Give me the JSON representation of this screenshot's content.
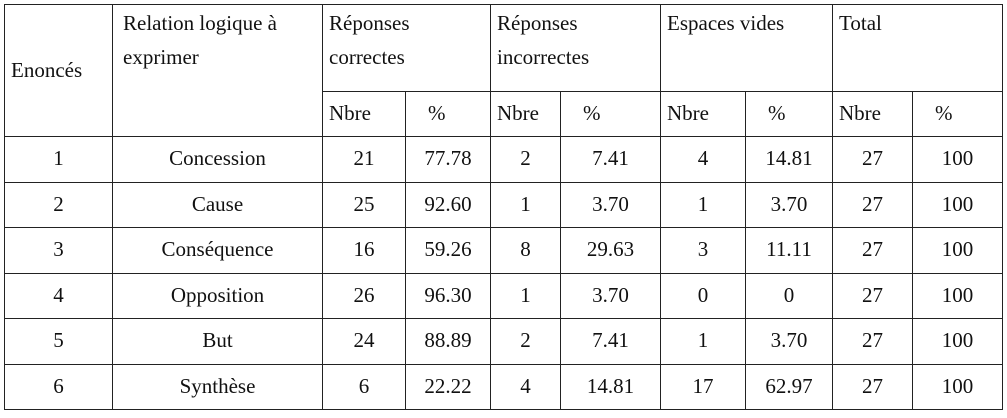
{
  "table": {
    "header": {
      "statement": "Enoncés",
      "relation": "Relation logique à exprimer",
      "groups": [
        "Réponses correctes",
        "Réponses incorrectes",
        "Espaces vides",
        "Total"
      ],
      "subheaders": [
        "Nbre",
        "%",
        "Nbre",
        "%",
        "Nbre",
        "%",
        "Nbre",
        "%"
      ]
    },
    "rows": [
      [
        "1",
        "Concession",
        "21",
        "77.78",
        "2",
        "7.41",
        "4",
        "14.81",
        "27",
        "100"
      ],
      [
        "2",
        "Cause",
        "25",
        "92.60",
        "1",
        "3.70",
        "1",
        "3.70",
        "27",
        "100"
      ],
      [
        "3",
        "Conséquence",
        "16",
        "59.26",
        "8",
        "29.63",
        "3",
        "11.11",
        "27",
        "100"
      ],
      [
        "4",
        "Opposition",
        "26",
        "96.30",
        "1",
        "3.70",
        "0",
        "0",
        "27",
        "100"
      ],
      [
        "5",
        "But",
        "24",
        "88.89",
        "2",
        "7.41",
        "1",
        "3.70",
        "27",
        "100"
      ],
      [
        "6",
        "Synthèse",
        "6",
        "22.22",
        "4",
        "14.81",
        "17",
        "62.97",
        "27",
        "100"
      ]
    ]
  }
}
